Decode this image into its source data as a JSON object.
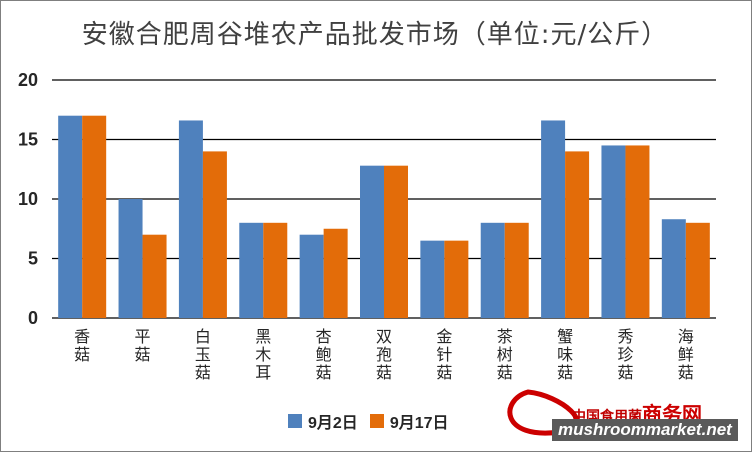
{
  "chart_data": {
    "type": "bar",
    "title": "安徽合肥周谷堆农产品批发市场（单位:元/公斤）",
    "categories": [
      "香菇",
      "平菇",
      "白玉菇",
      "黑木耳",
      "杏鲍菇",
      "双孢菇",
      "金针菇",
      "茶树菇",
      "蟹味菇",
      "秀珍菇",
      "海鲜菇"
    ],
    "series": [
      {
        "name": "9月2日",
        "color": "#4f81bd",
        "values": [
          17,
          10,
          16.6,
          8,
          7,
          12.8,
          6.5,
          8,
          16.6,
          14.5,
          8.3
        ]
      },
      {
        "name": "9月17日",
        "color": "#e36c09",
        "values": [
          17,
          7,
          14,
          8,
          7.5,
          12.8,
          6.5,
          8,
          14,
          14.5,
          8
        ]
      }
    ],
    "ylim": [
      0,
      20
    ],
    "yticks": [
      "0",
      "5",
      "10",
      "15",
      "20"
    ],
    "grid": true,
    "legend_position": "bottom"
  },
  "watermark": {
    "brand_text": "中国食用菌",
    "brand_big": "商务网",
    "url": "mushroommarket.net"
  }
}
